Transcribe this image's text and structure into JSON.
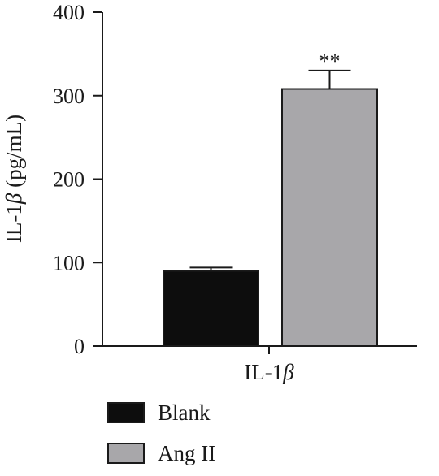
{
  "chart_data": {
    "type": "bar",
    "ylabel_prefix": "IL-1",
    "ylabel_greek": "β",
    "ylabel_suffix": " (pg/mL)",
    "xlabel_prefix": "IL-1",
    "xlabel_greek": "β",
    "ylim": [
      0,
      400
    ],
    "yticks": [
      "0",
      "100",
      "200",
      "300",
      "400"
    ],
    "ytick_values": [
      0,
      100,
      200,
      300,
      400
    ],
    "grid": false,
    "legend_position": "bottom-left",
    "series": [
      {
        "name": "Blank",
        "value": 90,
        "error": 4,
        "color": "#0d0d0d",
        "annotation": ""
      },
      {
        "name": "Ang II",
        "value": 308,
        "error": 22,
        "color": "#a8a7aa",
        "annotation": "**"
      }
    ]
  }
}
